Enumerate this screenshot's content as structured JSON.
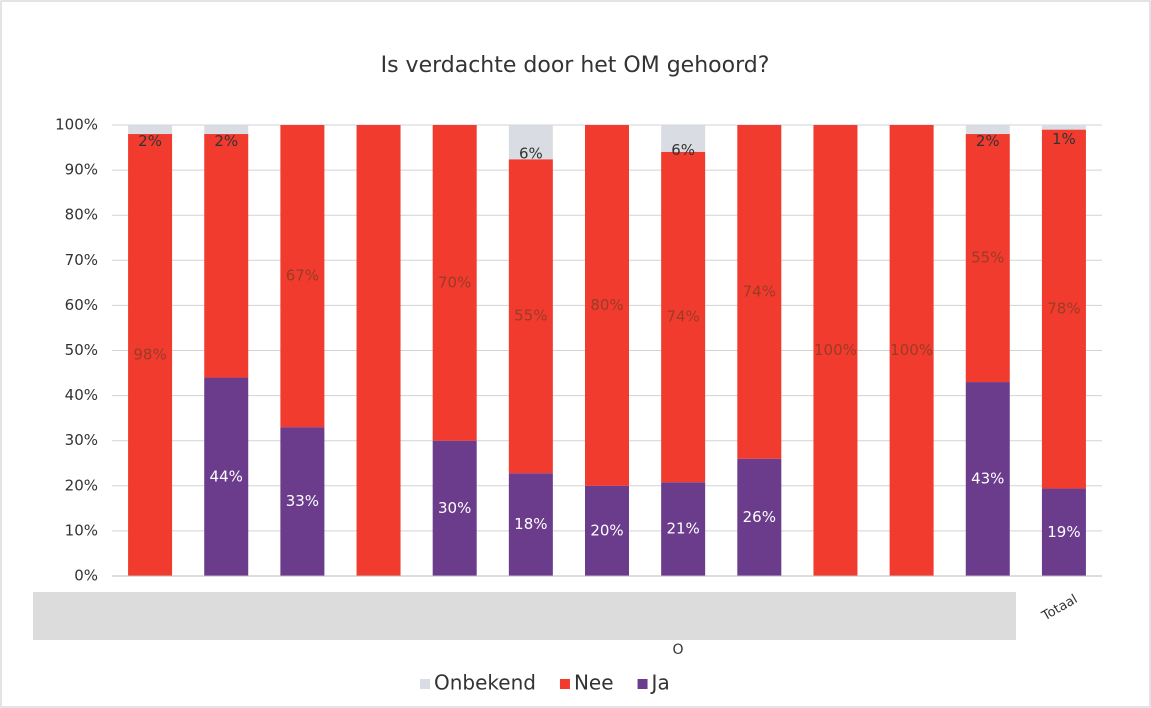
{
  "chart_data": {
    "type": "bar",
    "stacking": "percent",
    "title": "Is verdachte door het OM gehoord?",
    "x_label": "O",
    "categories": [
      null,
      null,
      null,
      null,
      null,
      null,
      null,
      null,
      null,
      null,
      null,
      null,
      "Totaal"
    ],
    "series": [
      {
        "name": "Onbekend",
        "color": "#d9dde3",
        "label_color": "#333333",
        "values": [
          2,
          2,
          0,
          0,
          0,
          6,
          0,
          6,
          0,
          0,
          0,
          2,
          1
        ],
        "value_labels": [
          "2%",
          "2%",
          null,
          null,
          null,
          "6%",
          null,
          "6%",
          null,
          null,
          null,
          "2%",
          "1%"
        ]
      },
      {
        "name": "Nee",
        "color": "#f23b2f",
        "label_color": "#9a3b25",
        "values": [
          98,
          54,
          67,
          100,
          70,
          55,
          80,
          74,
          74,
          100,
          100,
          55,
          78
        ],
        "value_labels": [
          "98%",
          null,
          "67%",
          null,
          "70%",
          "55%",
          "80%",
          "74%",
          "74%",
          "100%",
          "100%",
          "55%",
          "78%"
        ]
      },
      {
        "name": "Ja",
        "color": "#6b3b8c",
        "label_color": "#ffffff",
        "values": [
          0,
          44,
          33,
          0,
          30,
          18,
          20,
          21,
          26,
          0,
          0,
          43,
          19
        ],
        "value_labels": [
          null,
          "44%",
          "33%",
          null,
          "30%",
          "18%",
          "20%",
          "21%",
          "26%",
          null,
          null,
          "43%",
          "19%"
        ]
      }
    ],
    "ylim": [
      0,
      100
    ],
    "yticks": [
      {
        "value": 0,
        "label": "0%"
      },
      {
        "value": 10,
        "label": "10%"
      },
      {
        "value": 20,
        "label": "20%"
      },
      {
        "value": 30,
        "label": "30%"
      },
      {
        "value": 40,
        "label": "40%"
      },
      {
        "value": 50,
        "label": "50%"
      },
      {
        "value": 60,
        "label": "60%"
      },
      {
        "value": 70,
        "label": "70%"
      },
      {
        "value": 80,
        "label": "80%"
      },
      {
        "value": 90,
        "label": "90%"
      },
      {
        "value": 100,
        "label": "100%"
      }
    ],
    "grid": true,
    "legend": "bottom"
  }
}
